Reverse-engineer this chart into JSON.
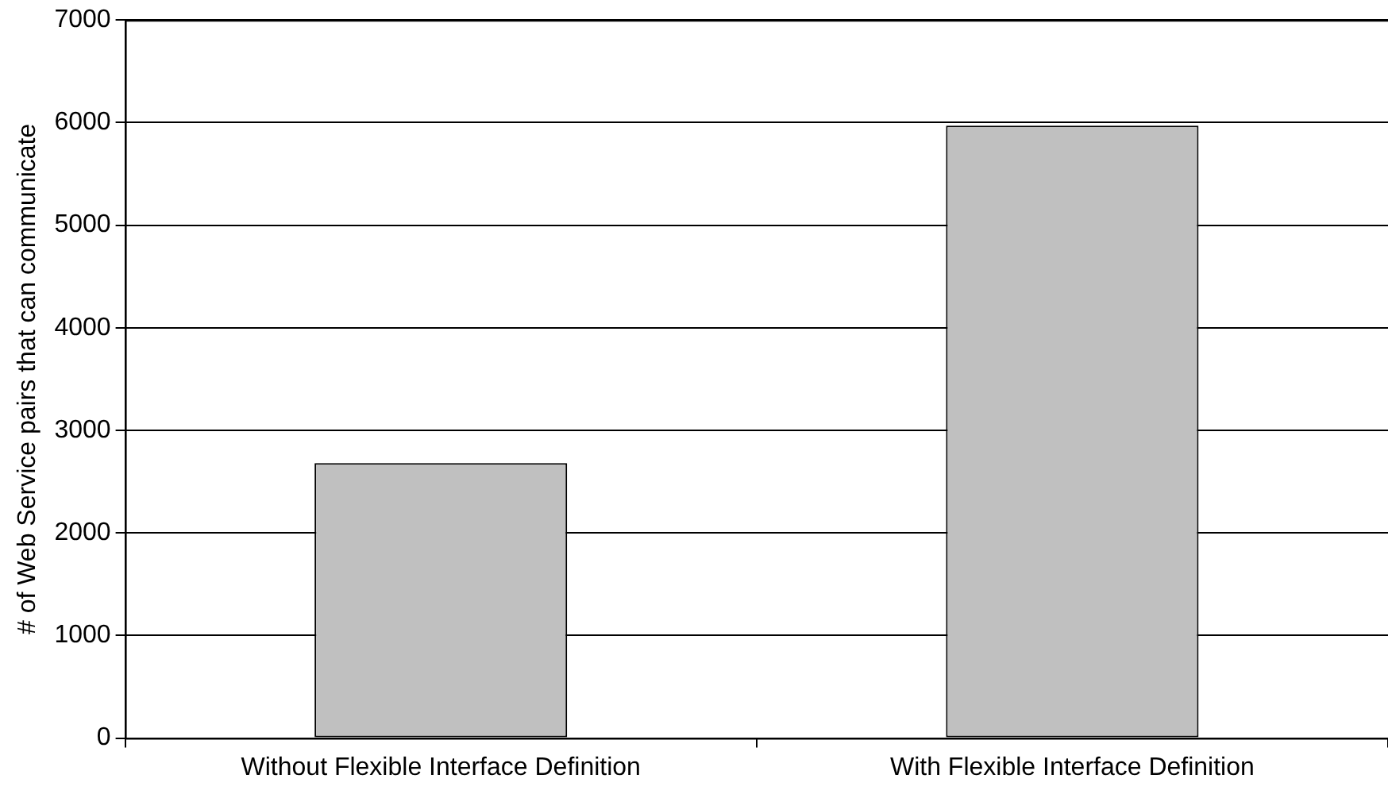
{
  "chart_data": {
    "type": "bar",
    "ylabel": "# of Web Service pairs that can communicate",
    "categories": [
      "Without Flexible Interface Definition",
      "With Flexible Interface Definition"
    ],
    "values": [
      2680,
      5970
    ],
    "color": "#c0c0c0",
    "ylim": [
      0,
      7000
    ],
    "yticks": [
      0,
      1000,
      2000,
      3000,
      4000,
      5000,
      6000,
      7000
    ],
    "grid": "y"
  }
}
